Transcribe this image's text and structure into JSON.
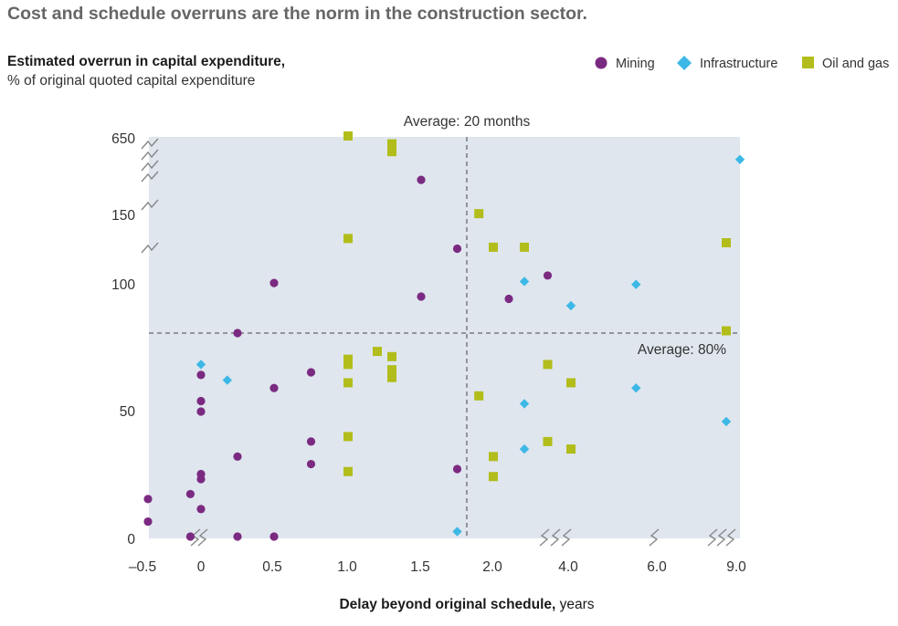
{
  "header": {
    "title": "Cost and schedule overruns are the norm in the construction sector.",
    "subtitle_bold": "Estimated overrun in capital expenditure,",
    "subtitle_rest": "% of original quoted capital expenditure"
  },
  "chart_data": {
    "type": "scatter",
    "title": "Cost and schedule overruns are the norm in the construction sector.",
    "ylabel": "Estimated overrun in capital expenditure, % of original quoted capital expenditure",
    "xlabel_bold": "Delay beyond original schedule,",
    "xlabel_unit": "years",
    "x_ticks": [
      "–0.5",
      "0",
      "0.5",
      "1.0",
      "1.5",
      "2.0",
      "4.0",
      "6.0",
      "9.0"
    ],
    "y_ticks": [
      "0",
      "50",
      "100",
      "150",
      "650"
    ],
    "axis_breaks": {
      "x": "between 2.0 and 9.0 (scale compressed)",
      "y": "between 100 and 650 (scale compressed)"
    },
    "annotations": [
      {
        "text": "Average: 20 months",
        "axis": "x",
        "value_months": 20
      },
      {
        "text": "Average: 80%",
        "axis": "y",
        "value": 80
      }
    ],
    "legend": {
      "placement": "top-right",
      "entries": [
        "Mining",
        "Infrastructure",
        "Oil and gas"
      ]
    },
    "colors": {
      "Mining": "#7b2a82",
      "Infrastructure": "#3db8e6",
      "Oil and gas": "#b2bd1b",
      "plot_bg": "#dfe6ee"
    },
    "series": [
      {
        "name": "Mining",
        "marker": "circle",
        "points": [
          [
            -0.5,
            15
          ],
          [
            -0.5,
            6
          ],
          [
            -0.1,
            0
          ],
          [
            -0.1,
            17
          ],
          [
            0,
            11
          ],
          [
            0,
            23
          ],
          [
            0,
            25
          ],
          [
            0,
            50
          ],
          [
            0,
            54
          ],
          [
            0,
            64
          ],
          [
            0.25,
            80
          ],
          [
            0.25,
            32
          ],
          [
            0.25,
            0
          ],
          [
            0.5,
            0
          ],
          [
            0.5,
            59
          ],
          [
            0.5,
            103
          ],
          [
            0.75,
            29
          ],
          [
            0.75,
            38
          ],
          [
            0.75,
            65
          ],
          [
            1.5,
            96
          ],
          [
            1.5,
            370
          ],
          [
            1.75,
            27
          ],
          [
            1.75,
            126
          ],
          [
            2.5,
            95
          ],
          [
            3.5,
            108
          ]
        ]
      },
      {
        "name": "Infrastructure",
        "marker": "diamond",
        "points": [
          [
            0,
            68
          ],
          [
            0.18,
            62
          ],
          [
            1.75,
            2
          ],
          [
            3.0,
            104
          ],
          [
            3.0,
            53
          ],
          [
            3.0,
            35
          ],
          [
            4.0,
            92
          ],
          [
            5.5,
            102
          ],
          [
            5.5,
            59
          ],
          [
            8.5,
            46
          ],
          [
            9.0,
            500
          ]
        ]
      },
      {
        "name": "Oil and gas",
        "marker": "square",
        "points": [
          [
            1.0,
            650
          ],
          [
            1.0,
            133
          ],
          [
            1.0,
            70
          ],
          [
            1.0,
            68
          ],
          [
            1.0,
            61
          ],
          [
            1.0,
            40
          ],
          [
            1.0,
            26
          ],
          [
            1.2,
            73
          ],
          [
            1.3,
            600
          ],
          [
            1.3,
            550
          ],
          [
            1.3,
            71
          ],
          [
            1.3,
            66
          ],
          [
            1.3,
            63
          ],
          [
            1.9,
            155
          ],
          [
            1.9,
            56
          ],
          [
            2.0,
            127
          ],
          [
            2.0,
            32
          ],
          [
            2.0,
            24
          ],
          [
            3.0,
            127
          ],
          [
            3.5,
            68
          ],
          [
            3.5,
            38
          ],
          [
            4.0,
            61
          ],
          [
            4.0,
            35
          ],
          [
            8.5,
            130
          ],
          [
            8.5,
            81
          ]
        ]
      }
    ]
  }
}
